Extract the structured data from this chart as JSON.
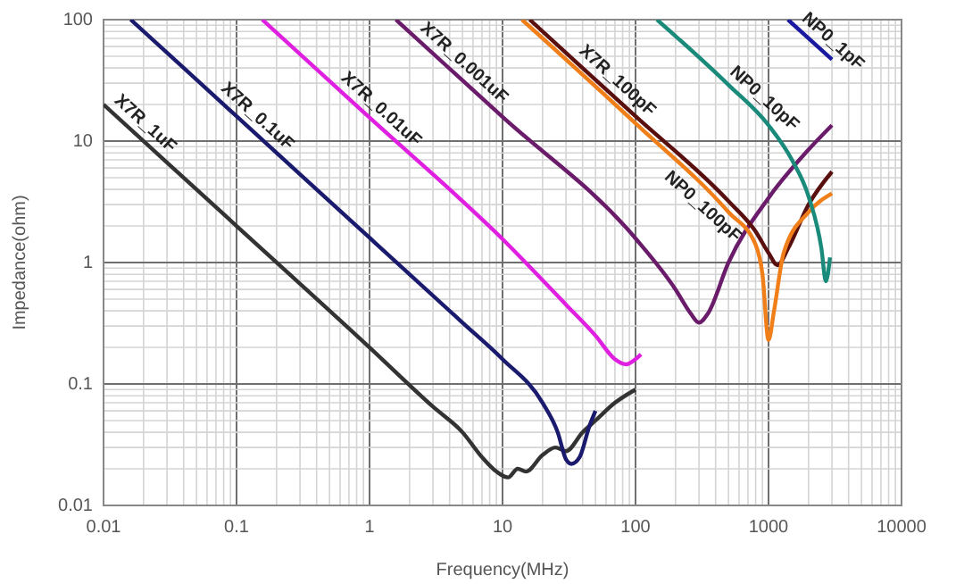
{
  "chart_data": {
    "type": "line",
    "xlabel": "Frequency(MHz)",
    "ylabel": "Impedance(ohm)",
    "log": "xy",
    "grid": true,
    "marker": "none",
    "line_style": "solid",
    "xlim": [
      0.01,
      10000
    ],
    "xticks": [
      0.01,
      0.1,
      1,
      10,
      100,
      1000,
      10000
    ],
    "ylim": [
      0.01,
      100
    ],
    "yticks": [
      0.01,
      0.1,
      1,
      10,
      100
    ],
    "series": [
      {
        "name": "X7R_1uF",
        "color": "#333333",
        "x": [
          0.01,
          0.1,
          1,
          3,
          5,
          7,
          9,
          11,
          13,
          15,
          20,
          25,
          30,
          40,
          50,
          70,
          100
        ],
        "values": [
          20,
          2,
          0.2,
          0.065,
          0.04,
          0.025,
          0.019,
          0.017,
          0.02,
          0.019,
          0.026,
          0.03,
          0.028,
          0.04,
          0.05,
          0.07,
          0.09
        ]
      },
      {
        "name": "X7R_0.1uF",
        "color": "#1a1a6e",
        "x": [
          0.016,
          0.1,
          1,
          5,
          10,
          20,
          26,
          30,
          33,
          38,
          45,
          50
        ],
        "values": [
          100,
          16,
          1.6,
          0.32,
          0.16,
          0.07,
          0.04,
          0.024,
          0.022,
          0.025,
          0.045,
          0.06
        ]
      },
      {
        "name": "X7R_0.01uF",
        "color": "#e020e0",
        "x": [
          0.156,
          1,
          10,
          30,
          50,
          70,
          85,
          100,
          110
        ],
        "values": [
          100,
          15.6,
          1.56,
          0.45,
          0.25,
          0.16,
          0.145,
          0.16,
          0.175
        ]
      },
      {
        "name": "X7R_0.001uF",
        "color": "#6a1b6a",
        "x": [
          1.58,
          10,
          100,
          200,
          260,
          300,
          350,
          500,
          1000,
          2000,
          3000
        ],
        "values": [
          100,
          15.8,
          1.58,
          0.6,
          0.38,
          0.32,
          0.38,
          1,
          3.4,
          8.5,
          13.5
        ]
      },
      {
        "name": "X7R_100pF",
        "color": "#5a0f0f",
        "x": [
          16,
          100,
          500,
          800,
          1000,
          1170,
          1400,
          2000,
          3000
        ],
        "values": [
          100,
          16,
          3.2,
          1.8,
          1.2,
          0.95,
          1.3,
          3,
          5.6
        ]
      },
      {
        "name": "NP0_100pF",
        "color": "#f07f1a",
        "x": [
          14,
          100,
          500,
          800,
          900,
          1000,
          1100,
          1300,
          2000,
          3000
        ],
        "values": [
          100,
          14,
          2.6,
          1.4,
          0.8,
          0.23,
          0.4,
          1.2,
          2.6,
          3.7
        ]
      },
      {
        "name": "NP0_10pF",
        "color": "#1a8a7a",
        "x": [
          145,
          500,
          1000,
          1500,
          2000,
          2500,
          2700,
          2900
        ],
        "values": [
          100,
          29,
          13.5,
          7,
          3.5,
          1.3,
          0.7,
          1.1
        ]
      },
      {
        "name": "NP0_1pF",
        "color": "#1a1aa0",
        "x": [
          1400,
          3000
        ],
        "values": [
          100,
          47
        ]
      }
    ]
  }
}
